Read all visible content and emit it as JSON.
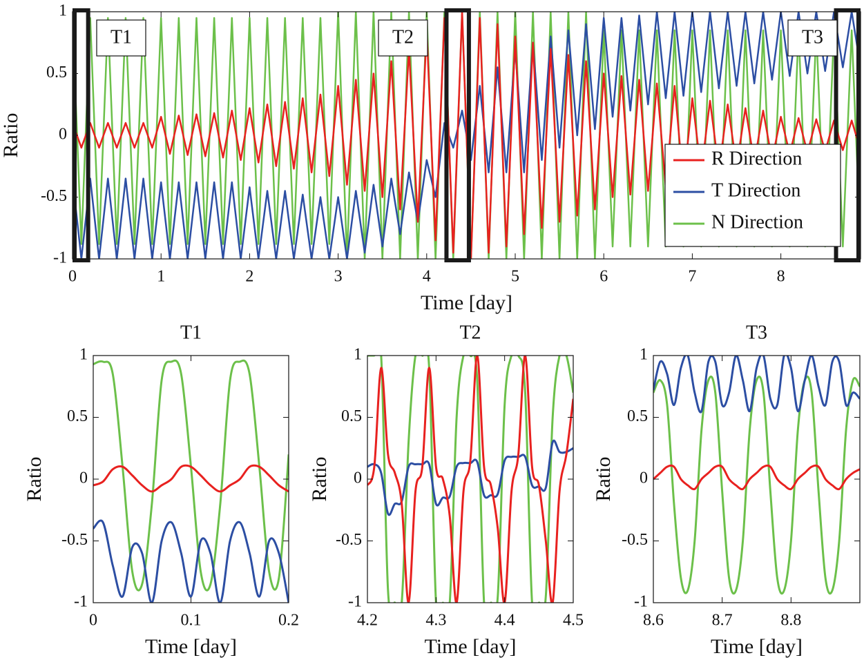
{
  "chart_data": [
    {
      "type": "line",
      "xlabel": "Time [day]",
      "ylabel": "Ratio",
      "xlim": [
        0,
        8.9
      ],
      "xticks": [
        0,
        1,
        2,
        3,
        4,
        5,
        6,
        7,
        8
      ],
      "ylim": [
        -1,
        1
      ],
      "yticks": [
        -1,
        -0.5,
        0,
        0.5,
        1
      ],
      "legend": "lower right",
      "highlights": [
        {
          "label": "T1",
          "x": [
            0,
            0.2
          ]
        },
        {
          "label": "T2",
          "x": [
            4.2,
            4.5
          ]
        },
        {
          "label": "T3",
          "x": [
            8.6,
            8.9
          ]
        }
      ],
      "x": [
        0,
        0.1,
        0.2,
        0.3,
        0.4,
        0.5,
        0.6,
        0.7,
        0.8,
        0.9,
        1,
        1.1,
        1.2,
        1.3,
        1.4,
        1.5,
        1.6,
        1.7,
        1.8,
        1.9,
        2,
        2.1,
        2.2,
        2.3,
        2.4,
        2.5,
        2.6,
        2.7,
        2.8,
        2.9,
        3,
        3.1,
        3.2,
        3.3,
        3.4,
        3.5,
        3.6,
        3.7,
        3.8,
        3.9,
        4,
        4.1,
        4.2,
        4.3,
        4.4,
        4.5,
        4.6,
        4.7,
        4.8,
        4.9,
        5,
        5.1,
        5.2,
        5.3,
        5.4,
        5.5,
        5.6,
        5.7,
        5.8,
        5.9,
        6,
        6.1,
        6.2,
        6.3,
        6.4,
        6.5,
        6.6,
        6.7,
        6.8,
        6.9,
        7,
        7.1,
        7.2,
        7.3,
        7.4,
        7.5,
        7.6,
        7.7,
        7.8,
        7.9,
        8,
        8.1,
        8.2,
        8.3,
        8.4,
        8.5,
        8.6,
        8.7,
        8.8,
        8.9
      ],
      "series": [
        {
          "name": "R Direction",
          "color": "#e8211f",
          "values": [
            0.1,
            -0.1,
            0.1,
            -0.1,
            0.1,
            -0.1,
            0.1,
            -0.1,
            0.1,
            -0.1,
            0.15,
            -0.15,
            0.16,
            -0.16,
            0.17,
            -0.17,
            0.18,
            -0.18,
            0.2,
            -0.2,
            0.22,
            -0.22,
            0.25,
            -0.25,
            0.27,
            -0.27,
            0.3,
            -0.3,
            0.33,
            -0.33,
            0.4,
            -0.4,
            0.45,
            -0.45,
            0.5,
            -0.5,
            0.6,
            -0.6,
            0.7,
            -0.7,
            0.85,
            -0.85,
            0.95,
            -0.95,
            1,
            -1,
            0.95,
            -0.95,
            0.9,
            -0.9,
            0.8,
            -0.8,
            0.75,
            -0.75,
            0.7,
            -0.7,
            0.65,
            -0.65,
            0.6,
            -0.6,
            0.5,
            -0.5,
            0.48,
            -0.48,
            0.45,
            -0.45,
            0.42,
            -0.42,
            0.4,
            -0.4,
            0.3,
            -0.3,
            0.28,
            -0.28,
            0.25,
            -0.25,
            0.22,
            -0.22,
            0.2,
            -0.2,
            0.15,
            -0.15,
            0.14,
            -0.14,
            0.13,
            -0.13,
            0.12,
            -0.12,
            0.12,
            -0.12
          ]
        },
        {
          "name": "T Direction",
          "color": "#2c4ea3",
          "values": [
            -0.35,
            -1,
            -0.35,
            -1,
            -0.35,
            -1,
            -0.35,
            -1,
            -0.35,
            -1,
            -0.38,
            -1,
            -0.38,
            -1,
            -0.38,
            -1,
            -0.38,
            -1,
            -0.38,
            -1,
            -0.42,
            -1,
            -0.45,
            -1,
            -0.45,
            -1,
            -0.48,
            -1,
            -0.5,
            -1,
            -0.5,
            -1,
            -0.45,
            -0.95,
            -0.4,
            -0.9,
            -0.35,
            -0.8,
            -0.3,
            -0.7,
            -0.2,
            -0.5,
            0.1,
            -0.1,
            0.2,
            -0.2,
            0.4,
            -0.3,
            0.55,
            -0.3,
            0.7,
            -0.3,
            0.75,
            -0.2,
            0.8,
            -0.1,
            0.85,
            0,
            0.9,
            0.05,
            0.95,
            0.15,
            0.95,
            0.2,
            0.97,
            0.25,
            1,
            0.3,
            1,
            0.32,
            1,
            0.35,
            1,
            0.38,
            1,
            0.4,
            1,
            0.42,
            1,
            0.45,
            1,
            0.48,
            1,
            0.5,
            1,
            0.52,
            1,
            0.55,
            1,
            0.55
          ]
        },
        {
          "name": "N Direction",
          "color": "#6cc04a",
          "values": [
            0.95,
            -0.88,
            0.95,
            -0.88,
            0.95,
            -0.88,
            0.95,
            -0.88,
            0.95,
            -0.88,
            0.95,
            -0.88,
            0.95,
            -0.88,
            0.95,
            -0.88,
            0.95,
            -0.88,
            0.95,
            -0.88,
            0.95,
            -0.88,
            0.95,
            -0.88,
            0.95,
            -0.88,
            0.95,
            -0.88,
            0.95,
            -0.88,
            1,
            -1,
            1,
            -1,
            1,
            -1,
            1,
            -1,
            1,
            -1,
            1,
            -1,
            1,
            -1,
            1,
            -1,
            1,
            -1,
            1,
            -1,
            1,
            -1,
            1,
            -1,
            1,
            -1,
            1,
            -1,
            1,
            -1,
            0.85,
            -0.9,
            0.85,
            -0.9,
            0.85,
            -0.9,
            0.85,
            -0.9,
            0.85,
            -0.9,
            0.85,
            -0.9,
            0.85,
            -0.9,
            0.85,
            -0.9,
            0.85,
            -0.9,
            0.85,
            -0.9,
            0.85,
            -0.9,
            0.85,
            -0.9,
            0.85,
            -0.9,
            0.85,
            -0.9,
            0.85,
            -0.9
          ]
        }
      ]
    },
    {
      "type": "line",
      "title": "T1",
      "xlabel": "Time [day]",
      "ylabel": "Ratio",
      "xlim": [
        0,
        0.2
      ],
      "xticks": [
        0,
        0.1,
        0.2
      ],
      "ylim": [
        -1,
        1
      ],
      "yticks": [
        -1,
        -0.5,
        0,
        0.5,
        1
      ],
      "x": [
        0,
        0.01,
        0.02,
        0.03,
        0.04,
        0.05,
        0.06,
        0.07,
        0.08,
        0.09,
        0.1,
        0.11,
        0.12,
        0.13,
        0.14,
        0.15,
        0.16,
        0.17,
        0.18,
        0.19,
        0.2
      ],
      "series": [
        {
          "color": "#e8211f",
          "values": [
            -0.05,
            -0.02,
            0.08,
            0.1,
            0.03,
            -0.05,
            -0.1,
            -0.05,
            0,
            0.1,
            0.1,
            0.03,
            -0.05,
            -0.1,
            -0.05,
            0,
            0.1,
            0.1,
            0.03,
            -0.05,
            -0.1
          ]
        },
        {
          "color": "#2c4ea3",
          "values": [
            -0.4,
            -0.35,
            -0.7,
            -0.95,
            -0.55,
            -0.6,
            -1,
            -0.5,
            -0.35,
            -0.6,
            -0.95,
            -0.5,
            -0.6,
            -1,
            -0.5,
            -0.35,
            -0.6,
            -0.95,
            -0.5,
            -0.6,
            -1
          ]
        },
        {
          "color": "#6cc04a",
          "values": [
            0.93,
            0.95,
            0.85,
            0.1,
            -0.75,
            -0.85,
            -0.2,
            0.8,
            0.95,
            0.85,
            0.1,
            -0.75,
            -0.85,
            -0.2,
            0.8,
            0.95,
            0.85,
            0.1,
            -0.75,
            -0.8,
            0.2
          ]
        }
      ]
    },
    {
      "type": "line",
      "title": "T2",
      "xlabel": "Time [day]",
      "ylabel": "Ratio",
      "xlim": [
        4.2,
        4.5
      ],
      "xticks": [
        4.2,
        4.3,
        4.4,
        4.5
      ],
      "ylim": [
        -1,
        1
      ],
      "yticks": [
        -1,
        -0.5,
        0,
        0.5,
        1
      ],
      "x": [
        4.2,
        4.21,
        4.22,
        4.23,
        4.24,
        4.25,
        4.26,
        4.27,
        4.28,
        4.29,
        4.3,
        4.31,
        4.32,
        4.33,
        4.34,
        4.35,
        4.36,
        4.37,
        4.38,
        4.39,
        4.4,
        4.41,
        4.42,
        4.43,
        4.44,
        4.45,
        4.46,
        4.47,
        4.48,
        4.49,
        4.5
      ],
      "series": [
        {
          "color": "#e8211f",
          "values": [
            -0.05,
            0.1,
            0.9,
            0.2,
            0.05,
            -0.2,
            -1,
            -0.1,
            0.1,
            0.9,
            0.1,
            0,
            -0.3,
            -1,
            -0.1,
            0.15,
            1,
            0.1,
            -0.05,
            -0.4,
            -1,
            -0.1,
            0.2,
            1,
            0.1,
            -0.05,
            -0.5,
            -1,
            -0.1,
            0.2,
            0.65
          ]
        },
        {
          "color": "#2c4ea3",
          "values": [
            0.1,
            0.12,
            0.05,
            -0.28,
            -0.2,
            -0.18,
            0.1,
            0.12,
            0.12,
            0.12,
            -0.2,
            -0.15,
            -0.14,
            0.1,
            0.13,
            0.13,
            0.14,
            -0.13,
            -0.13,
            -0.12,
            0.15,
            0.18,
            0.18,
            0.18,
            -0.05,
            -0.06,
            -0.07,
            0.3,
            0.22,
            0.22,
            0.25
          ]
        },
        {
          "color": "#6cc04a",
          "values": [
            1,
            1,
            1,
            -0.9,
            -1,
            -1,
            0.3,
            1,
            1,
            0.9,
            -1,
            -1,
            -1,
            0.5,
            1,
            1,
            0.8,
            -1,
            -1,
            -0.95,
            0.6,
            1,
            1,
            0.7,
            -1,
            -1,
            -0.95,
            0.5,
            1,
            1,
            0.7
          ]
        }
      ]
    },
    {
      "type": "line",
      "title": "T3",
      "xlabel": "Time [day]",
      "ylabel": "Ratio",
      "xlim": [
        8.6,
        8.9
      ],
      "xticks": [
        8.6,
        8.7,
        8.8
      ],
      "ylim": [
        -1,
        1
      ],
      "yticks": [
        -1,
        -0.5,
        0,
        0.5,
        1
      ],
      "x": [
        8.6,
        8.61,
        8.62,
        8.63,
        8.64,
        8.65,
        8.66,
        8.67,
        8.68,
        8.69,
        8.7,
        8.71,
        8.72,
        8.73,
        8.74,
        8.75,
        8.76,
        8.77,
        8.78,
        8.79,
        8.8,
        8.81,
        8.82,
        8.83,
        8.84,
        8.85,
        8.86,
        8.87,
        8.88,
        8.89,
        8.9
      ],
      "series": [
        {
          "color": "#e8211f",
          "values": [
            0,
            0.05,
            0.1,
            0.1,
            0,
            -0.05,
            -0.08,
            0,
            0.05,
            0.1,
            0.1,
            0,
            -0.05,
            -0.08,
            0,
            0.05,
            0.1,
            0.1,
            0,
            -0.05,
            -0.08,
            0,
            0.05,
            0.1,
            0.1,
            0,
            -0.05,
            -0.08,
            0,
            0.05,
            0.08
          ]
        },
        {
          "color": "#2c4ea3",
          "values": [
            0.72,
            0.95,
            0.85,
            0.6,
            0.9,
            1,
            0.7,
            0.55,
            0.95,
            0.95,
            0.6,
            0.7,
            1,
            0.8,
            0.55,
            0.9,
            1,
            0.65,
            0.6,
            1,
            0.9,
            0.55,
            0.8,
            1,
            0.75,
            0.6,
            0.95,
            0.95,
            0.6,
            0.7,
            0.65
          ]
        },
        {
          "color": "#6cc04a",
          "values": [
            0.7,
            0.8,
            0.6,
            -0.2,
            -0.8,
            -0.9,
            -0.5,
            0.4,
            0.8,
            0.7,
            -0.1,
            -0.8,
            -0.9,
            -0.5,
            0.4,
            0.8,
            0.7,
            -0.1,
            -0.8,
            -0.9,
            -0.5,
            0.4,
            0.8,
            0.7,
            -0.1,
            -0.8,
            -0.9,
            -0.5,
            0.4,
            0.8,
            0.75
          ]
        }
      ]
    }
  ]
}
